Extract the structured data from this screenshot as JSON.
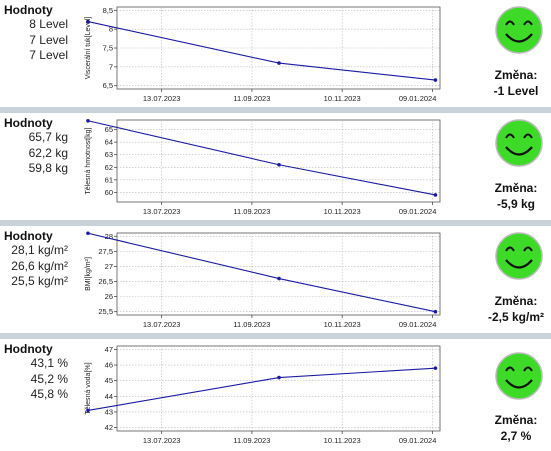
{
  "labels": {
    "heading": "Hodnoty",
    "change_label": "Změna:"
  },
  "colors": {
    "line": "#1a1aa6",
    "smiley_fill": "#3ddb28",
    "separator": "#c9d2d9"
  },
  "icons": {
    "status": "smiley-icon"
  },
  "panels": [
    {
      "values": [
        "8 Level",
        "7 Level",
        "7 Level"
      ],
      "change": "-1 Level"
    },
    {
      "values": [
        "65,7 kg",
        "62,2 kg",
        "59,8 kg"
      ],
      "change": "-5,9 kg"
    },
    {
      "values": [
        "28,1 kg/m²",
        "26,6 kg/m²",
        "25,5 kg/m²"
      ],
      "change": "-2,5 kg/m²"
    },
    {
      "values": [
        "43,1 %",
        "45,2 %",
        "45,8 %"
      ],
      "change": "2,7 %"
    }
  ],
  "chart_data": [
    {
      "type": "line",
      "ylabel": "Viscerální tuk[Level]",
      "x": [
        "2023-05-25",
        "2023-09-29",
        "2024-01-11"
      ],
      "values": [
        8.2,
        7.1,
        6.65
      ],
      "ylim": [
        6.5,
        8.5
      ],
      "yticks": [
        "6,5",
        "7",
        "7,5",
        "8",
        "8,5"
      ],
      "xticks": [
        "13.07.2023",
        "11.09.2023",
        "10.11.2023",
        "09.01.2024"
      ]
    },
    {
      "type": "line",
      "ylabel": "Tělesná hmotnost[kg]",
      "x": [
        "2023-05-25",
        "2023-09-29",
        "2024-01-11"
      ],
      "values": [
        65.7,
        62.2,
        59.8
      ],
      "ylim": [
        59.5,
        65.5
      ],
      "yticks": [
        "60",
        "61",
        "62",
        "63",
        "64",
        "65"
      ],
      "xticks": [
        "13.07.2023",
        "11.09.2023",
        "10.11.2023",
        "09.01.2024"
      ]
    },
    {
      "type": "line",
      "ylabel": "BMI[kg/m²]",
      "x": [
        "2023-05-25",
        "2023-09-29",
        "2024-01-11"
      ],
      "values": [
        28.1,
        26.6,
        25.5
      ],
      "ylim": [
        25.5,
        28
      ],
      "yticks": [
        "25,5",
        "26",
        "26,5",
        "27",
        "27,5",
        "28"
      ],
      "xticks": [
        "13.07.2023",
        "11.09.2023",
        "10.11.2023",
        "09.01.2024"
      ]
    },
    {
      "type": "line",
      "ylabel": "Tělesná voda[%]",
      "x": [
        "2023-05-25",
        "2023-09-29",
        "2024-01-11"
      ],
      "values": [
        43.1,
        45.2,
        45.8
      ],
      "ylim": [
        42,
        47
      ],
      "yticks": [
        "42",
        "43",
        "44",
        "45",
        "46",
        "47"
      ],
      "xticks": [
        "13.07.2023",
        "11.09.2023",
        "10.11.2023",
        "09.01.2024"
      ]
    }
  ]
}
